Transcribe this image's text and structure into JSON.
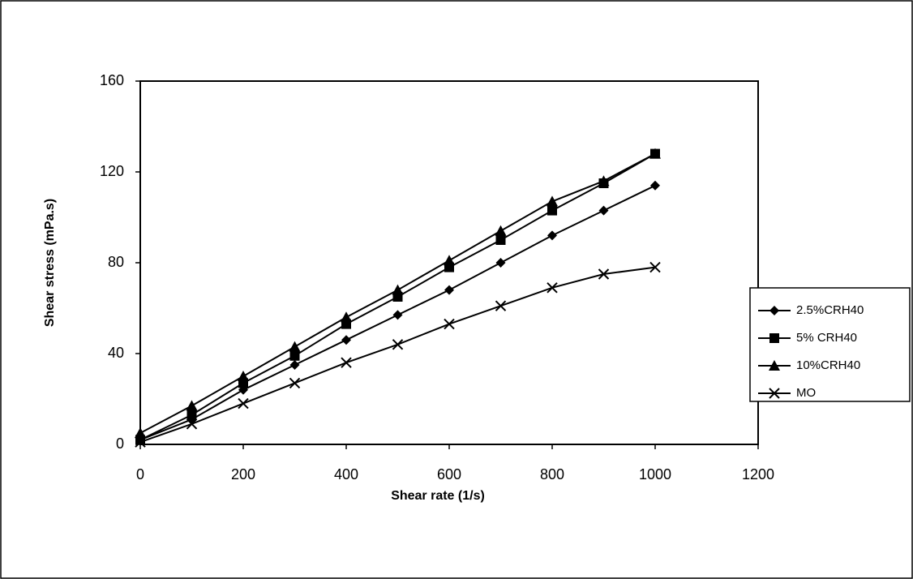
{
  "chart_data": {
    "type": "line",
    "x_label": "Shear rate (1/s)",
    "y_label": "Shear stress (mPa.s)",
    "x": [
      0,
      100,
      200,
      300,
      400,
      500,
      600,
      700,
      800,
      900,
      1000
    ],
    "series": [
      {
        "name": "2.5%CRH40",
        "color": "#000000",
        "marker": "diamond",
        "values": [
          2,
          11,
          24,
          35,
          46,
          57,
          68,
          80,
          92,
          103,
          114
        ]
      },
      {
        "name": "5% CRH40",
        "color": "#000000",
        "marker": "square",
        "values": [
          2,
          13,
          27,
          39,
          53,
          65,
          78,
          90,
          103,
          115,
          128
        ]
      },
      {
        "name": "10%CRH40",
        "color": "#000000",
        "marker": "triangle",
        "values": [
          5,
          17,
          30,
          43,
          56,
          68,
          81,
          94,
          107,
          116,
          128
        ]
      },
      {
        "name": "MO",
        "color": "#000000",
        "marker": "x",
        "values": [
          1,
          9,
          18,
          27,
          36,
          44,
          53,
          61,
          69,
          75,
          78
        ]
      }
    ],
    "xlim": [
      0,
      1200
    ],
    "xticks": [
      0,
      200,
      400,
      600,
      800,
      1000,
      1200
    ],
    "ylim": [
      0,
      160
    ],
    "yticks": [
      0,
      40,
      80,
      120,
      160
    ],
    "grid": false,
    "legend": "right"
  }
}
